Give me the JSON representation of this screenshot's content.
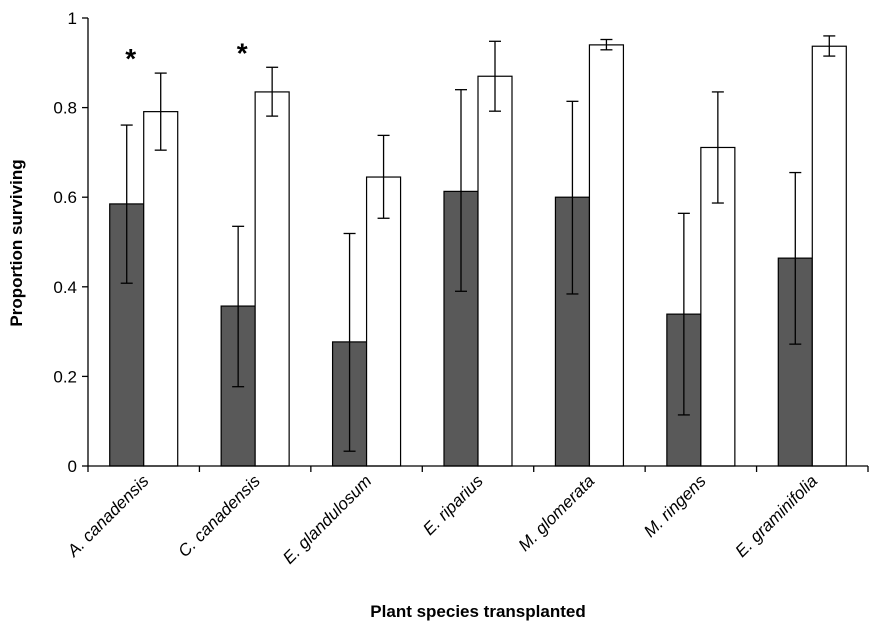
{
  "chart_data": {
    "type": "bar",
    "title": "",
    "xlabel": "Plant species transplanted",
    "ylabel": "Proportion surviving",
    "ylim": [
      0,
      1
    ],
    "yticks": [
      "0",
      "0.2",
      "0.4",
      "0.6",
      "0.8",
      "1"
    ],
    "grid": false,
    "legend": "none",
    "categories": [
      "A. canadensis",
      "C. canadensis",
      "E. glandulosum",
      "E. riparius",
      "M. glomerata",
      "M. ringens",
      "E. graminifolia"
    ],
    "series": [
      {
        "color": "#595959",
        "values": [
          0.585,
          0.357,
          0.277,
          0.613,
          0.6,
          0.339,
          0.464
        ],
        "error_low": [
          0.408,
          0.177,
          0.033,
          0.39,
          0.384,
          0.114,
          0.272
        ],
        "error_high": [
          0.761,
          0.535,
          0.519,
          0.84,
          0.814,
          0.564,
          0.655
        ]
      },
      {
        "color": "#ffffff",
        "values": [
          0.791,
          0.835,
          0.645,
          0.87,
          0.94,
          0.711,
          0.937
        ],
        "error_low": [
          0.705,
          0.781,
          0.553,
          0.792,
          0.929,
          0.587,
          0.915
        ],
        "error_high": [
          0.877,
          0.89,
          0.738,
          0.948,
          0.952,
          0.835,
          0.96
        ]
      }
    ],
    "annotations": [
      {
        "text": "*",
        "category": "A. canadensis"
      },
      {
        "text": "*",
        "category": "C. canadensis"
      }
    ]
  }
}
